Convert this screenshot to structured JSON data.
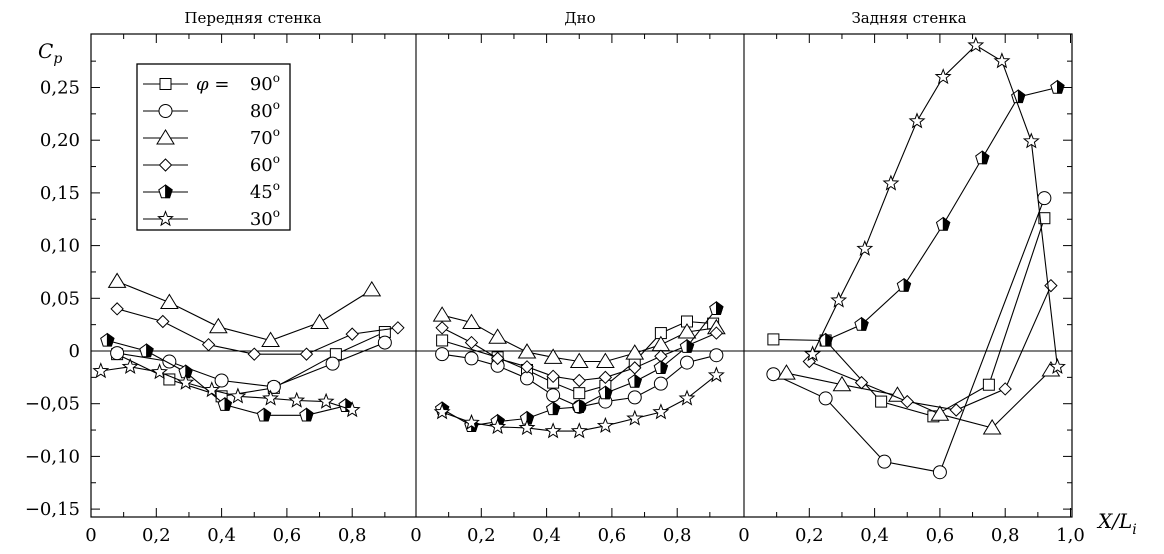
{
  "chart_data": {
    "type": "line",
    "sections": [
      "Передняя стенка",
      "Дно",
      "Задняя стенка"
    ],
    "ylabel": "C",
    "ylabel_sub": "p",
    "xlabel": "X/L",
    "xlabel_sub": "i",
    "ylim": [
      -0.15,
      0.3
    ],
    "xlim": [
      0,
      1
    ],
    "y_ticks": [
      -0.15,
      -0.1,
      -0.05,
      0,
      0.05,
      0.1,
      0.15,
      0.2,
      0.25
    ],
    "y_tick_labels": [
      "−0,15",
      "−0,10",
      "−0,05",
      "0",
      "0,05",
      "0,10",
      "0,15",
      "0,20",
      "0,25"
    ],
    "x_ticks": [
      0,
      0.2,
      0.4,
      0.6,
      0.8,
      1.0
    ],
    "x_tick_labels": [
      "0",
      "0,2",
      "0,4",
      "0,6",
      "0,8",
      "1,0"
    ],
    "legend": {
      "placement": "top-left",
      "phi_symbol": "φ = ",
      "degree_suffix": "o"
    },
    "series": [
      {
        "name": "90",
        "marker": "square",
        "segments": [
          [
            [
              0.08,
              -0.003
            ],
            [
              0.24,
              -0.027
            ],
            [
              0.4,
              -0.043
            ],
            [
              0.56,
              -0.035
            ],
            [
              0.75,
              -0.003
            ],
            [
              0.9,
              0.018
            ]
          ],
          [
            [
              0.08,
              0.01
            ],
            [
              0.25,
              -0.006
            ],
            [
              0.34,
              -0.018
            ],
            [
              0.42,
              -0.03
            ],
            [
              0.5,
              -0.04
            ],
            [
              0.58,
              -0.033
            ],
            [
              0.67,
              -0.01
            ],
            [
              0.75,
              0.017
            ],
            [
              0.83,
              0.028
            ],
            [
              0.91,
              0.026
            ]
          ],
          [
            [
              0.09,
              0.011
            ],
            [
              0.25,
              0.01
            ],
            [
              0.42,
              -0.048
            ],
            [
              0.58,
              -0.062
            ],
            [
              0.75,
              -0.032
            ],
            [
              0.92,
              0.126
            ]
          ]
        ]
      },
      {
        "name": "80",
        "marker": "circle",
        "segments": [
          [
            [
              0.08,
              -0.002
            ],
            [
              0.24,
              -0.01
            ],
            [
              0.4,
              -0.028
            ],
            [
              0.56,
              -0.034
            ],
            [
              0.74,
              -0.012
            ],
            [
              0.9,
              0.008
            ]
          ],
          [
            [
              0.08,
              -0.003
            ],
            [
              0.17,
              -0.007
            ],
            [
              0.25,
              -0.014
            ],
            [
              0.34,
              -0.026
            ],
            [
              0.42,
              -0.042
            ],
            [
              0.5,
              -0.053
            ],
            [
              0.58,
              -0.048
            ],
            [
              0.67,
              -0.044
            ],
            [
              0.75,
              -0.031
            ],
            [
              0.83,
              -0.011
            ],
            [
              0.92,
              -0.004
            ]
          ],
          [
            [
              0.09,
              -0.022
            ],
            [
              0.25,
              -0.045
            ],
            [
              0.43,
              -0.105
            ],
            [
              0.6,
              -0.115
            ],
            [
              0.92,
              0.145
            ]
          ]
        ]
      },
      {
        "name": "70",
        "marker": "triangle",
        "segments": [
          [
            [
              0.08,
              0.066
            ],
            [
              0.24,
              0.046
            ],
            [
              0.39,
              0.023
            ],
            [
              0.55,
              0.01
            ],
            [
              0.7,
              0.027
            ],
            [
              0.86,
              0.058
            ]
          ],
          [
            [
              0.08,
              0.034
            ],
            [
              0.17,
              0.027
            ],
            [
              0.25,
              0.013
            ],
            [
              0.34,
              -0.001
            ],
            [
              0.42,
              -0.006
            ],
            [
              0.5,
              -0.01
            ],
            [
              0.58,
              -0.01
            ],
            [
              0.67,
              -0.002
            ],
            [
              0.75,
              0.006
            ],
            [
              0.83,
              0.018
            ],
            [
              0.92,
              0.022
            ]
          ],
          [
            [
              0.13,
              -0.021
            ],
            [
              0.3,
              -0.032
            ],
            [
              0.47,
              -0.042
            ],
            [
              0.6,
              -0.06
            ],
            [
              0.76,
              -0.073
            ],
            [
              0.94,
              -0.018
            ]
          ]
        ]
      },
      {
        "name": "60",
        "marker": "diamond",
        "segments": [
          [
            [
              0.08,
              0.04
            ],
            [
              0.22,
              0.028
            ],
            [
              0.36,
              0.006
            ],
            [
              0.5,
              -0.003
            ],
            [
              0.66,
              -0.003
            ],
            [
              0.8,
              0.016
            ],
            [
              0.94,
              0.022
            ]
          ],
          [
            [
              0.08,
              0.022
            ],
            [
              0.17,
              0.008
            ],
            [
              0.25,
              -0.007
            ],
            [
              0.34,
              -0.015
            ],
            [
              0.42,
              -0.024
            ],
            [
              0.5,
              -0.028
            ],
            [
              0.58,
              -0.025
            ],
            [
              0.67,
              -0.016
            ],
            [
              0.75,
              -0.005
            ],
            [
              0.83,
              0.005
            ],
            [
              0.92,
              0.017
            ]
          ],
          [
            [
              0.2,
              -0.01
            ],
            [
              0.36,
              -0.03
            ],
            [
              0.5,
              -0.048
            ],
            [
              0.65,
              -0.056
            ],
            [
              0.8,
              -0.036
            ],
            [
              0.94,
              0.062
            ]
          ]
        ]
      },
      {
        "name": "45",
        "marker": "pentagon",
        "segments": [
          [
            [
              0.05,
              0.01
            ],
            [
              0.17,
              0.0
            ],
            [
              0.29,
              -0.02
            ],
            [
              0.41,
              -0.051
            ],
            [
              0.53,
              -0.061
            ],
            [
              0.66,
              -0.061
            ],
            [
              0.78,
              -0.052
            ]
          ],
          [
            [
              0.08,
              -0.055
            ],
            [
              0.17,
              -0.071
            ],
            [
              0.25,
              -0.067
            ],
            [
              0.34,
              -0.064
            ],
            [
              0.42,
              -0.055
            ],
            [
              0.5,
              -0.053
            ],
            [
              0.58,
              -0.04
            ],
            [
              0.67,
              -0.029
            ],
            [
              0.75,
              -0.016
            ],
            [
              0.83,
              0.004
            ],
            [
              0.92,
              0.04
            ]
          ],
          [
            [
              0.25,
              0.01
            ],
            [
              0.36,
              0.025
            ],
            [
              0.49,
              0.062
            ],
            [
              0.61,
              0.12
            ],
            [
              0.73,
              0.183
            ],
            [
              0.84,
              0.241
            ],
            [
              0.96,
              0.25
            ]
          ]
        ]
      },
      {
        "name": "30",
        "marker": "star",
        "segments": [
          [
            [
              0.03,
              -0.019
            ],
            [
              0.12,
              -0.015
            ],
            [
              0.21,
              -0.02
            ],
            [
              0.29,
              -0.03
            ],
            [
              0.37,
              -0.037
            ],
            [
              0.45,
              -0.043
            ],
            [
              0.55,
              -0.045
            ],
            [
              0.63,
              -0.047
            ],
            [
              0.72,
              -0.048
            ],
            [
              0.8,
              -0.056
            ]
          ],
          [
            [
              0.08,
              -0.058
            ],
            [
              0.17,
              -0.068
            ],
            [
              0.25,
              -0.072
            ],
            [
              0.34,
              -0.073
            ],
            [
              0.42,
              -0.076
            ],
            [
              0.5,
              -0.076
            ],
            [
              0.58,
              -0.071
            ],
            [
              0.67,
              -0.064
            ],
            [
              0.75,
              -0.058
            ],
            [
              0.83,
              -0.045
            ],
            [
              0.92,
              -0.023
            ]
          ],
          [
            [
              0.21,
              -0.003
            ],
            [
              0.29,
              0.048
            ],
            [
              0.37,
              0.097
            ],
            [
              0.45,
              0.159
            ],
            [
              0.53,
              0.218
            ],
            [
              0.61,
              0.26
            ],
            [
              0.71,
              0.29
            ],
            [
              0.79,
              0.275
            ],
            [
              0.88,
              0.199
            ],
            [
              0.96,
              -0.015
            ]
          ]
        ]
      }
    ]
  }
}
